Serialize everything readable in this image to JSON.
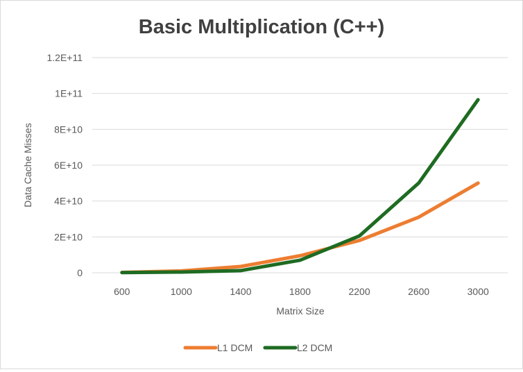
{
  "chart_data": {
    "type": "line",
    "title": "Basic Multiplication (C++)",
    "xlabel": "Matrix Size",
    "ylabel": "Data Cache Misses",
    "categories": [
      "600",
      "1000",
      "1400",
      "1800",
      "2200",
      "2600",
      "3000"
    ],
    "ylim": [
      0,
      120000000000
    ],
    "yticks": [
      0,
      20000000000,
      40000000000,
      60000000000,
      80000000000,
      100000000000,
      120000000000
    ],
    "ytick_labels": [
      "0",
      "2E+10",
      "4E+10",
      "6E+10",
      "8E+10",
      "1E+11",
      "1.2E+11"
    ],
    "grid": true,
    "legend_position": "bottom",
    "series": [
      {
        "name": "L1 DCM",
        "color": "#ED7D31",
        "values": [
          200000000,
          1000000000,
          3500000000,
          9500000000,
          18000000000,
          31000000000,
          50000000000
        ]
      },
      {
        "name": "L2 DCM",
        "color": "#1E6B22",
        "values": [
          100000000,
          400000000,
          1200000000,
          7000000000,
          20500000000,
          50000000000,
          96500000000
        ]
      }
    ]
  }
}
